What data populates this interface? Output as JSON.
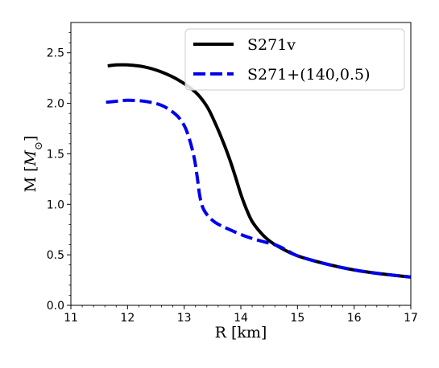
{
  "chart_data": {
    "type": "line",
    "title": "",
    "xlabel": "R [km]",
    "ylabel": "M [M⊙]",
    "ylabel_parts": {
      "main": "M [",
      "symbol": "M",
      "subscript": "⊙",
      "end": "]"
    },
    "xlim": [
      11,
      17
    ],
    "ylim": [
      0.0,
      2.8
    ],
    "xticks": [
      11,
      12,
      13,
      14,
      15,
      16,
      17
    ],
    "xtick_labels": [
      "11",
      "12",
      "13",
      "14",
      "15",
      "16",
      "17"
    ],
    "yticks": [
      0.0,
      0.5,
      1.0,
      1.5,
      2.0,
      2.5
    ],
    "ytick_labels": [
      "0.0",
      "0.5",
      "1.0",
      "1.5",
      "2.0",
      "2.5"
    ],
    "grid": false,
    "legend_position": "top-right",
    "series": [
      {
        "name": "S271v",
        "color": "#000000",
        "style": "solid",
        "x": [
          11.65,
          11.8,
          12.0,
          12.3,
          12.6,
          12.9,
          13.2,
          13.4,
          13.55,
          13.7,
          13.8,
          13.9,
          14.0,
          14.1,
          14.2,
          14.35,
          14.5,
          14.7,
          15.0,
          15.5,
          16.0,
          16.5,
          17.0
        ],
        "y": [
          2.37,
          2.38,
          2.38,
          2.36,
          2.31,
          2.23,
          2.11,
          1.97,
          1.8,
          1.6,
          1.45,
          1.28,
          1.1,
          0.95,
          0.83,
          0.72,
          0.64,
          0.57,
          0.49,
          0.41,
          0.35,
          0.31,
          0.28
        ]
      },
      {
        "name": "S271+(140,0.5)",
        "color": "#0000ee",
        "style": "dashed",
        "x": [
          11.62,
          11.8,
          12.0,
          12.3,
          12.6,
          12.85,
          13.0,
          13.1,
          13.18,
          13.23,
          13.27,
          13.32,
          13.4,
          13.55,
          13.8,
          14.1,
          14.4,
          14.6,
          14.8,
          15.0,
          15.5,
          16.0,
          16.5,
          17.0
        ],
        "y": [
          2.01,
          2.02,
          2.03,
          2.02,
          1.98,
          1.89,
          1.78,
          1.63,
          1.45,
          1.27,
          1.1,
          0.98,
          0.9,
          0.82,
          0.75,
          0.68,
          0.63,
          0.6,
          0.55,
          0.49,
          0.41,
          0.35,
          0.31,
          0.28
        ]
      }
    ]
  }
}
